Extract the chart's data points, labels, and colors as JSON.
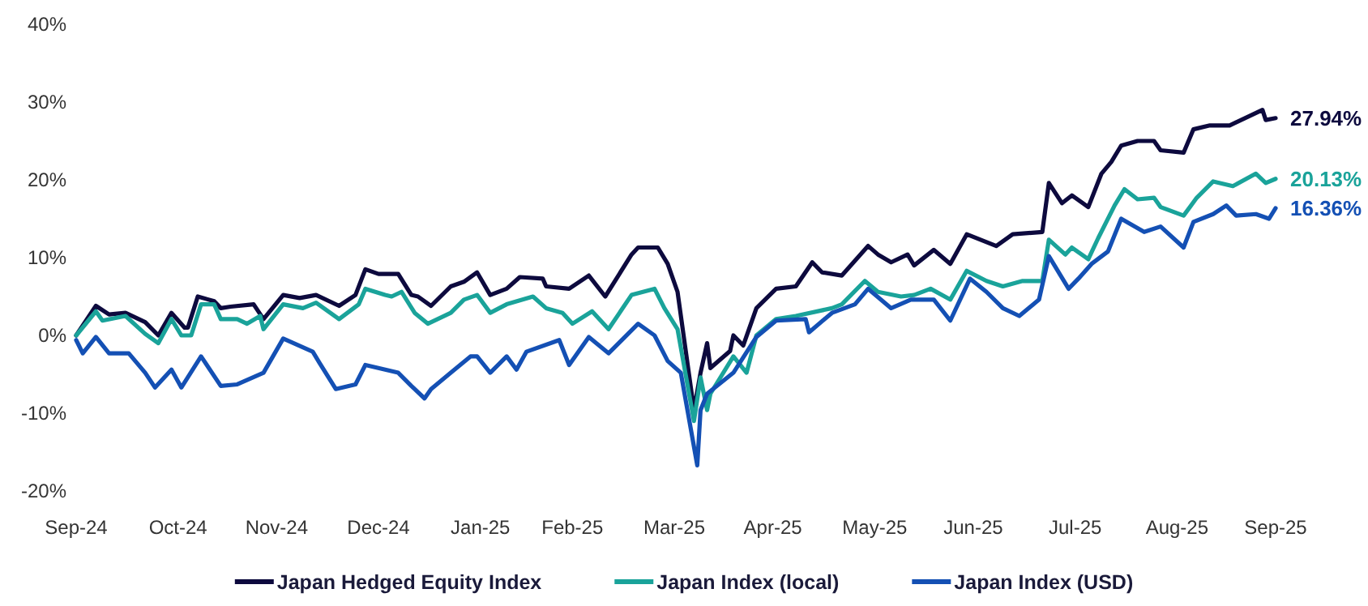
{
  "chart_data": {
    "type": "line",
    "xlim": [
      "2024-09-30",
      "2025-09-30"
    ],
    "xticks": [
      {
        "value": "2024-09-30",
        "label": "Sep-24"
      },
      {
        "value": "2024-10-31",
        "label": "Oct-24"
      },
      {
        "value": "2024-11-30",
        "label": "Nov-24"
      },
      {
        "value": "2024-12-31",
        "label": "Dec-24"
      },
      {
        "value": "2025-01-31",
        "label": "Jan-25"
      },
      {
        "value": "2025-02-28",
        "label": "Feb-25"
      },
      {
        "value": "2025-03-31",
        "label": "Mar-25"
      },
      {
        "value": "2025-04-30",
        "label": "Apr-25"
      },
      {
        "value": "2025-05-31",
        "label": "May-25"
      },
      {
        "value": "2025-06-30",
        "label": "Jun-25"
      },
      {
        "value": "2025-07-31",
        "label": "Jul-25"
      },
      {
        "value": "2025-08-31",
        "label": "Aug-25"
      },
      {
        "value": "2025-09-30",
        "label": "Sep-25"
      }
    ],
    "ylim": [
      -20,
      40
    ],
    "yticks": [
      {
        "value": -20,
        "label": "-20%"
      },
      {
        "value": -10,
        "label": "-10%"
      },
      {
        "value": 0,
        "label": "0%"
      },
      {
        "value": 10,
        "label": "10%"
      },
      {
        "value": 20,
        "label": "20%"
      },
      {
        "value": 30,
        "label": "30%"
      },
      {
        "value": 40,
        "label": "40%"
      }
    ],
    "grid": false,
    "legend": "bottom",
    "marker": "none",
    "line_style": "solid",
    "series": [
      {
        "name": "Japan Hedged Equity Index",
        "color": "#0d0a3e",
        "x": [
          "2024-09-30",
          "2024-10-06",
          "2024-10-10",
          "2024-10-15",
          "2024-10-21",
          "2024-10-25",
          "2024-10-29",
          "2024-11-02",
          "2024-11-03",
          "2024-11-06",
          "2024-11-11",
          "2024-11-13",
          "2024-11-16",
          "2024-11-23",
          "2024-11-26",
          "2024-12-02",
          "2024-12-07",
          "2024-12-12",
          "2024-12-19",
          "2024-12-24",
          "2024-12-27",
          "2024-12-31",
          "2025-01-06",
          "2025-01-10",
          "2025-01-12",
          "2025-01-16",
          "2025-01-22",
          "2025-01-26",
          "2025-01-30",
          "2025-02-03",
          "2025-02-08",
          "2025-02-12",
          "2025-02-19",
          "2025-02-20",
          "2025-02-27",
          "2025-03-05",
          "2025-03-10",
          "2025-03-18",
          "2025-03-20",
          "2025-03-26",
          "2025-03-29",
          "2025-04-01",
          "2025-04-06",
          "2025-04-08",
          "2025-04-10",
          "2025-04-11",
          "2025-04-17",
          "2025-04-18",
          "2025-04-21",
          "2025-04-25",
          "2025-05-01",
          "2025-05-07",
          "2025-05-12",
          "2025-05-15",
          "2025-05-21",
          "2025-05-29",
          "2025-06-01",
          "2025-06-05",
          "2025-06-10",
          "2025-06-12",
          "2025-06-18",
          "2025-06-23",
          "2025-06-28",
          "2025-07-07",
          "2025-07-12",
          "2025-07-21",
          "2025-07-23",
          "2025-07-27",
          "2025-07-30",
          "2025-08-04",
          "2025-08-08",
          "2025-08-11",
          "2025-08-14",
          "2025-08-19",
          "2025-08-24",
          "2025-08-26",
          "2025-09-02",
          "2025-09-05",
          "2025-09-10",
          "2025-09-16",
          "2025-09-26",
          "2025-09-27",
          "2025-09-30"
        ],
        "values": [
          0,
          3.8,
          2.7,
          2.9,
          1.7,
          0,
          2.9,
          1,
          1,
          5,
          4.4,
          3.5,
          3.7,
          4,
          2.1,
          5.2,
          4.8,
          5.2,
          3.8,
          5.2,
          8.5,
          7.9,
          7.9,
          5.2,
          5,
          3.8,
          6.3,
          6.9,
          8.1,
          5.2,
          6,
          7.5,
          7.3,
          6.3,
          6,
          7.7,
          5,
          10.4,
          11.3,
          11.3,
          9.2,
          5.6,
          -9.6,
          -4.8,
          -1,
          -4.2,
          -2,
          0,
          -1.3,
          3.5,
          6,
          6.3,
          9.4,
          8.1,
          7.7,
          11.5,
          10.4,
          9.4,
          10.4,
          9,
          11,
          9.2,
          13,
          11.5,
          13,
          13.3,
          19.6,
          17,
          18,
          16.5,
          20.8,
          22.3,
          24.4,
          25,
          25,
          23.8,
          23.5,
          26.5,
          27,
          27,
          29,
          27.7,
          27.94
        ],
        "value_labels": [
          null,
          null,
          null,
          null,
          null,
          null,
          null,
          null,
          null,
          null,
          null,
          null,
          null,
          null,
          null,
          null,
          null,
          null,
          null,
          null,
          null,
          null,
          null,
          null,
          null,
          null,
          null,
          null,
          null,
          null,
          null,
          null,
          null,
          null,
          null,
          null,
          null,
          null,
          null,
          null,
          null,
          null,
          null,
          null,
          null,
          null,
          null,
          null,
          null,
          null,
          null,
          null,
          null,
          null,
          null,
          null,
          null,
          null,
          null,
          null,
          null,
          null,
          null,
          null,
          null,
          null,
          null,
          null,
          null,
          null,
          null,
          null,
          null,
          null,
          null,
          null,
          null,
          null,
          null,
          null,
          null,
          null,
          "27.94%"
        ]
      },
      {
        "name": "Japan Index (local)",
        "color": "#1aa39a",
        "x": [
          "2024-09-30",
          "2024-10-06",
          "2024-10-08",
          "2024-10-15",
          "2024-10-21",
          "2024-10-25",
          "2024-10-29",
          "2024-11-01",
          "2024-11-04",
          "2024-11-07",
          "2024-11-11",
          "2024-11-13",
          "2024-11-18",
          "2024-11-21",
          "2024-11-25",
          "2024-11-26",
          "2024-12-02",
          "2024-12-08",
          "2024-12-12",
          "2024-12-19",
          "2024-12-25",
          "2024-12-27",
          "2025-01-02",
          "2025-01-04",
          "2025-01-07",
          "2025-01-11",
          "2025-01-15",
          "2025-01-22",
          "2025-01-26",
          "2025-01-30",
          "2025-02-03",
          "2025-02-08",
          "2025-02-16",
          "2025-02-20",
          "2025-02-25",
          "2025-02-28",
          "2025-03-06",
          "2025-03-11",
          "2025-03-18",
          "2025-03-25",
          "2025-03-28",
          "2025-04-01",
          "2025-04-06",
          "2025-04-08",
          "2025-04-10",
          "2025-04-11",
          "2025-04-18",
          "2025-04-22",
          "2025-04-25",
          "2025-05-01",
          "2025-05-07",
          "2025-05-18",
          "2025-05-21",
          "2025-05-28",
          "2025-06-01",
          "2025-06-08",
          "2025-06-12",
          "2025-06-17",
          "2025-06-23",
          "2025-06-28",
          "2025-07-04",
          "2025-07-09",
          "2025-07-15",
          "2025-07-21",
          "2025-07-23",
          "2025-07-28",
          "2025-07-30",
          "2025-08-04",
          "2025-08-07",
          "2025-08-12",
          "2025-08-15",
          "2025-08-19",
          "2025-08-24",
          "2025-08-26",
          "2025-09-02",
          "2025-09-06",
          "2025-09-11",
          "2025-09-17",
          "2025-09-24",
          "2025-09-27",
          "2025-09-30"
        ],
        "values": [
          0,
          3.1,
          1.9,
          2.5,
          0.2,
          -1,
          2.1,
          0,
          0,
          4,
          4,
          2.1,
          2.1,
          1.5,
          2.5,
          0.8,
          4,
          3.5,
          4.2,
          2.1,
          4,
          6,
          5.2,
          5,
          5.6,
          2.9,
          1.5,
          2.9,
          4.6,
          5.2,
          2.9,
          4,
          5,
          3.5,
          2.9,
          1.5,
          3.1,
          0.8,
          5.2,
          6,
          3.5,
          0.8,
          -11,
          -5.4,
          -9.6,
          -7.5,
          -2.7,
          -4.8,
          0,
          2.1,
          2.5,
          3.5,
          4,
          7,
          5.6,
          5,
          5.2,
          6,
          4.6,
          8.3,
          7,
          6.3,
          7,
          7,
          12.3,
          10.4,
          11.3,
          9.8,
          12.5,
          16.7,
          18.8,
          17.5,
          17.7,
          16.5,
          15.4,
          17.7,
          19.8,
          19.2,
          20.8,
          19.6,
          20.13
        ],
        "value_labels": [
          null,
          null,
          null,
          null,
          null,
          null,
          null,
          null,
          null,
          null,
          null,
          null,
          null,
          null,
          null,
          null,
          null,
          null,
          null,
          null,
          null,
          null,
          null,
          null,
          null,
          null,
          null,
          null,
          null,
          null,
          null,
          null,
          null,
          null,
          null,
          null,
          null,
          null,
          null,
          null,
          null,
          null,
          null,
          null,
          null,
          null,
          null,
          null,
          null,
          null,
          null,
          null,
          null,
          null,
          null,
          null,
          null,
          null,
          null,
          null,
          null,
          null,
          null,
          null,
          null,
          null,
          null,
          null,
          null,
          null,
          null,
          null,
          null,
          null,
          null,
          null,
          null,
          null,
          null,
          null,
          "20.13%"
        ]
      },
      {
        "name": "Japan Index (USD)",
        "color": "#1450b4",
        "x": [
          "2024-09-30",
          "2024-10-02",
          "2024-10-06",
          "2024-10-10",
          "2024-10-16",
          "2024-10-21",
          "2024-10-24",
          "2024-10-29",
          "2024-11-01",
          "2024-11-07",
          "2024-11-13",
          "2024-11-18",
          "2024-11-26",
          "2024-12-02",
          "2024-12-11",
          "2024-12-13",
          "2024-12-18",
          "2024-12-24",
          "2024-12-27",
          "2025-01-06",
          "2025-01-10",
          "2025-01-14",
          "2025-01-16",
          "2025-01-22",
          "2025-01-28",
          "2025-01-30",
          "2025-02-03",
          "2025-02-08",
          "2025-02-11",
          "2025-02-14",
          "2025-02-24",
          "2025-02-27",
          "2025-03-05",
          "2025-03-11",
          "2025-03-20",
          "2025-03-25",
          "2025-03-29",
          "2025-04-02",
          "2025-04-07",
          "2025-04-08",
          "2025-04-10",
          "2025-04-18",
          "2025-04-25",
          "2025-05-01",
          "2025-05-10",
          "2025-05-11",
          "2025-05-18",
          "2025-05-25",
          "2025-05-29",
          "2025-06-05",
          "2025-06-11",
          "2025-06-18",
          "2025-06-23",
          "2025-06-29",
          "2025-07-04",
          "2025-07-09",
          "2025-07-14",
          "2025-07-20",
          "2025-07-23",
          "2025-07-29",
          "2025-08-01",
          "2025-08-05",
          "2025-08-10",
          "2025-08-14",
          "2025-08-21",
          "2025-08-26",
          "2025-09-02",
          "2025-09-05",
          "2025-09-11",
          "2025-09-15",
          "2025-09-18",
          "2025-09-24",
          "2025-09-28",
          "2025-09-30"
        ],
        "values": [
          -0.6,
          -2.3,
          -0.2,
          -2.3,
          -2.3,
          -4.8,
          -6.7,
          -4.4,
          -6.7,
          -2.7,
          -6.5,
          -6.3,
          -4.8,
          -0.4,
          -2.1,
          -3.5,
          -6.9,
          -6.3,
          -3.8,
          -4.8,
          -6.5,
          -8.1,
          -6.9,
          -4.8,
          -2.7,
          -2.7,
          -4.8,
          -2.7,
          -4.4,
          -2.1,
          -0.6,
          -3.8,
          -0.2,
          -2.3,
          1.5,
          0,
          -3.3,
          -4.8,
          -16.7,
          -9.6,
          -7.5,
          -4.8,
          -0.2,
          1.9,
          2.1,
          0.4,
          2.9,
          4,
          6,
          3.5,
          4.6,
          4.6,
          1.9,
          7.3,
          5.6,
          3.5,
          2.5,
          4.6,
          10.2,
          6,
          7.3,
          9.2,
          10.8,
          15,
          13.3,
          14,
          11.3,
          14.6,
          15.6,
          16.7,
          15.4,
          15.6,
          15,
          16.36
        ],
        "value_labels": [
          null,
          null,
          null,
          null,
          null,
          null,
          null,
          null,
          null,
          null,
          null,
          null,
          null,
          null,
          null,
          null,
          null,
          null,
          null,
          null,
          null,
          null,
          null,
          null,
          null,
          null,
          null,
          null,
          null,
          null,
          null,
          null,
          null,
          null,
          null,
          null,
          null,
          null,
          null,
          null,
          null,
          null,
          null,
          null,
          null,
          null,
          null,
          null,
          null,
          null,
          null,
          null,
          null,
          null,
          null,
          null,
          null,
          null,
          null,
          null,
          null,
          null,
          null,
          null,
          null,
          null,
          null,
          null,
          null,
          null,
          null,
          null,
          null,
          "16.36%"
        ]
      }
    ]
  }
}
